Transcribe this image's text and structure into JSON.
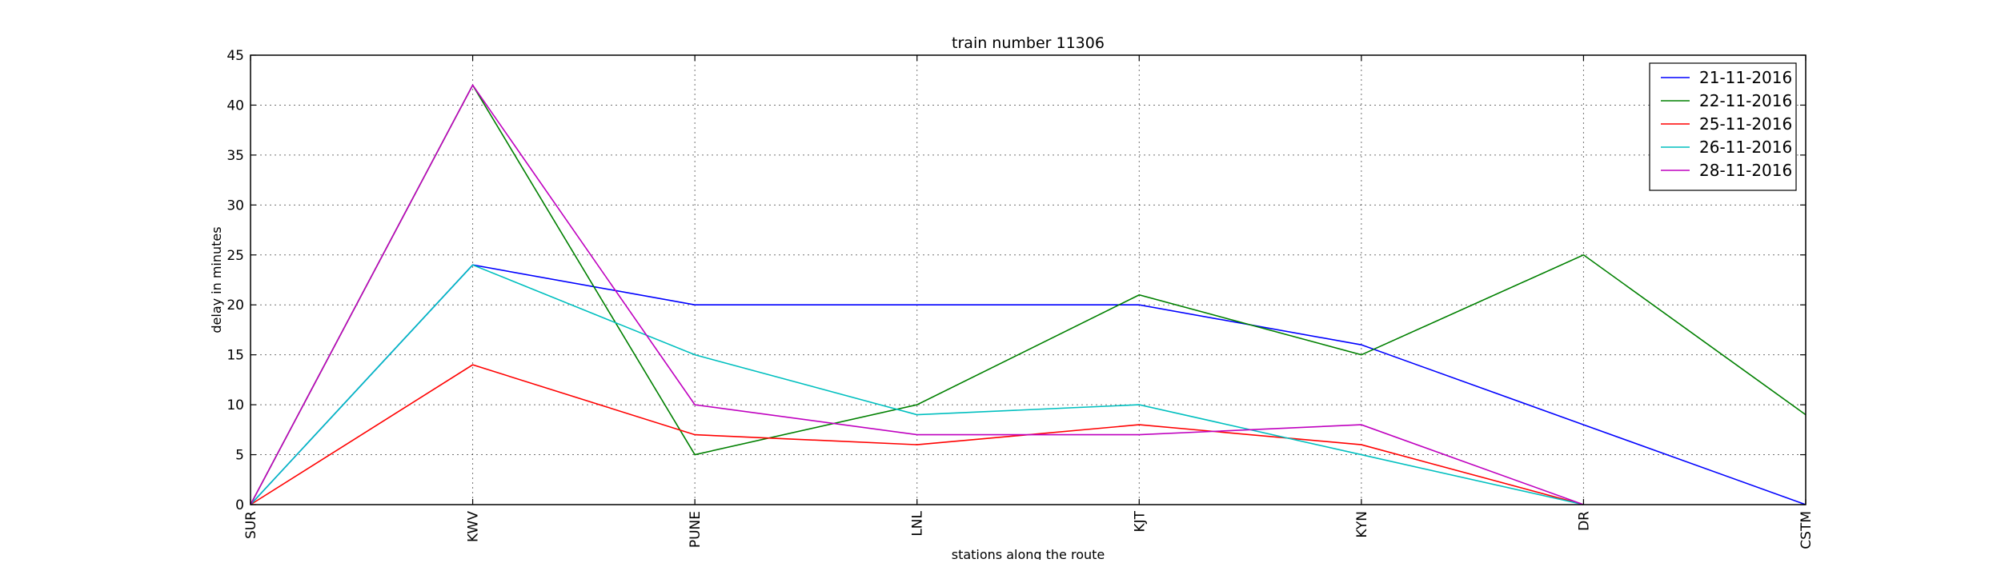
{
  "chart_data": {
    "type": "line",
    "title": "train number 11306",
    "xlabel": "stations along the route",
    "ylabel": "delay in minutes",
    "categories": [
      "SUR",
      "KWV",
      "PUNE",
      "LNL",
      "KJT",
      "KYN",
      "DR",
      "CSTM"
    ],
    "ylim": [
      0,
      45
    ],
    "yticks": [
      0,
      5,
      10,
      15,
      20,
      25,
      30,
      35,
      40,
      45
    ],
    "grid": true,
    "legend_position": "top-right",
    "series": [
      {
        "name": "21-11-2016",
        "color": "#0000ff",
        "values": [
          0,
          24,
          20,
          20,
          20,
          16,
          8,
          0
        ]
      },
      {
        "name": "22-11-2016",
        "color": "#008000",
        "values": [
          0,
          42,
          5,
          10,
          21,
          15,
          25,
          9
        ]
      },
      {
        "name": "25-11-2016",
        "color": "#ff0000",
        "values": [
          0,
          14,
          7,
          6,
          8,
          6,
          0,
          null
        ]
      },
      {
        "name": "26-11-2016",
        "color": "#00bfbf",
        "values": [
          0,
          24,
          15,
          9,
          10,
          5,
          0,
          null
        ]
      },
      {
        "name": "28-11-2016",
        "color": "#bf00bf",
        "values": [
          0,
          42,
          10,
          7,
          7,
          8,
          0,
          null
        ]
      }
    ]
  }
}
